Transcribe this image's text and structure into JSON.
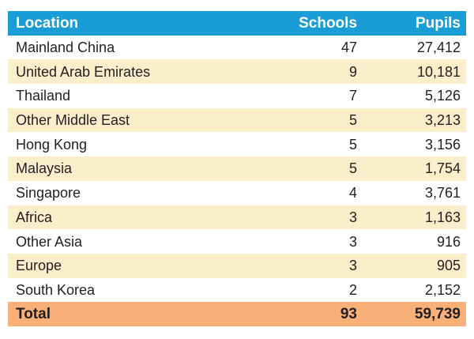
{
  "chart_data": {
    "type": "table",
    "columns": [
      "Location",
      "Schools",
      "Pupils"
    ],
    "rows": [
      [
        "Mainland China",
        "47",
        "27,412"
      ],
      [
        "United Arab Emirates",
        "9",
        "10,181"
      ],
      [
        "Thailand",
        "7",
        "5,126"
      ],
      [
        "Other Middle East",
        "5",
        "3,213"
      ],
      [
        "Hong Kong",
        "5",
        "3,156"
      ],
      [
        "Malaysia",
        "5",
        "1,754"
      ],
      [
        "Singapore",
        "4",
        "3,761"
      ],
      [
        "Africa",
        "3",
        "1,163"
      ],
      [
        "Other Asia",
        "3",
        "916"
      ],
      [
        "Europe",
        "3",
        "905"
      ],
      [
        "South Korea",
        "2",
        "2,152"
      ]
    ],
    "total_row": [
      "Total",
      "93",
      "59,739"
    ],
    "numeric": {
      "schools": [
        47,
        9,
        7,
        5,
        5,
        5,
        4,
        3,
        3,
        3,
        2
      ],
      "pupils": [
        27412,
        10181,
        5126,
        3213,
        3156,
        1754,
        3761,
        1163,
        916,
        905,
        2152
      ],
      "total_schools": 93,
      "total_pupils": 59739
    }
  },
  "colors": {
    "header_bg": "#1A9CD7",
    "stripe_bg": "#FBEECA",
    "total_bg": "#F8AF78",
    "text": "#231F20",
    "header_text": "#FFFFFF",
    "page_bg": "#FFFFFF"
  }
}
